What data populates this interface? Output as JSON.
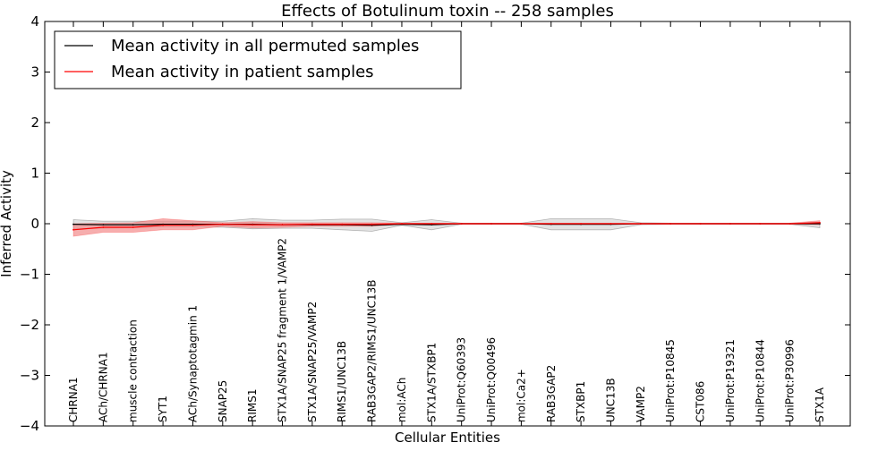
{
  "chart_data": {
    "type": "line",
    "title": "Effects of Botulinum toxin -- 258 samples",
    "xlabel": "Cellular Entities",
    "ylabel": "Inferred Activity",
    "ylim": [
      -4,
      4
    ],
    "yticks": [
      -4,
      -3,
      -2,
      -1,
      0,
      1,
      2,
      3,
      4
    ],
    "ytick_labels": [
      "−4",
      "−3",
      "−2",
      "−1",
      "0",
      "1",
      "2",
      "3",
      "4"
    ],
    "legend_position": "top-left",
    "categories": [
      "CHRNA1",
      "ACh/CHRNA1",
      "muscle contraction",
      "SYT1",
      "ACh/Synaptotagmin 1",
      "SNAP25",
      "RIMS1",
      "STX1A/SNAP25 fragment 1/VAMP2",
      "STX1A/SNAP25/VAMP2",
      "RIMS1/UNC13B",
      "RAB3GAP2/RIMS1/UNC13B",
      "mol:ACh",
      "STX1A/STXBP1",
      "UniProt:Q60393",
      "UniProt:Q00496",
      "mol:Ca2+",
      "RAB3GAP2",
      "STXBP1",
      "UNC13B",
      "VAMP2",
      "UniProt:P10845",
      "CST086",
      "UniProt:P19321",
      "UniProt:P10844",
      "UniProt:P30996",
      "STX1A"
    ],
    "series": [
      {
        "name": "Mean activity in all permuted samples",
        "color": "#000000",
        "band_color": "#bfbfbf",
        "values": [
          -0.01,
          -0.02,
          -0.02,
          -0.01,
          -0.01,
          -0.01,
          -0.01,
          -0.02,
          -0.02,
          -0.02,
          -0.03,
          -0.01,
          -0.02,
          0.0,
          0.0,
          0.0,
          -0.01,
          -0.01,
          -0.01,
          0.0,
          0.0,
          0.0,
          0.0,
          0.0,
          0.0,
          0.0
        ],
        "lower": [
          -0.1,
          -0.09,
          -0.08,
          -0.06,
          -0.06,
          -0.07,
          -0.1,
          -0.09,
          -0.09,
          -0.12,
          -0.15,
          -0.03,
          -0.12,
          -0.01,
          -0.01,
          -0.01,
          -0.12,
          -0.12,
          -0.12,
          -0.02,
          -0.01,
          -0.01,
          -0.01,
          -0.01,
          -0.01,
          -0.08
        ],
        "upper": [
          0.08,
          0.05,
          0.05,
          0.05,
          0.05,
          0.05,
          0.1,
          0.07,
          0.07,
          0.09,
          0.09,
          0.02,
          0.08,
          0.01,
          0.01,
          0.01,
          0.1,
          0.1,
          0.1,
          0.02,
          0.01,
          0.01,
          0.01,
          0.01,
          0.01,
          0.03
        ]
      },
      {
        "name": "Mean activity in patient samples",
        "color": "#ff0000",
        "band_color": "#f28c8c",
        "values": [
          -0.12,
          -0.07,
          -0.07,
          -0.03,
          -0.03,
          -0.01,
          -0.02,
          -0.02,
          -0.01,
          -0.01,
          -0.01,
          0.0,
          0.0,
          0.0,
          0.0,
          0.0,
          0.0,
          0.0,
          0.0,
          0.0,
          0.0,
          0.0,
          0.0,
          0.0,
          0.0,
          0.02
        ],
        "lower": [
          -0.25,
          -0.17,
          -0.17,
          -0.12,
          -0.12,
          -0.05,
          -0.08,
          -0.07,
          -0.05,
          -0.05,
          -0.05,
          -0.01,
          -0.01,
          -0.01,
          -0.01,
          -0.01,
          -0.01,
          -0.01,
          -0.01,
          -0.01,
          -0.01,
          -0.01,
          -0.01,
          -0.01,
          -0.01,
          -0.02
        ],
        "upper": [
          0.0,
          0.01,
          0.02,
          0.1,
          0.06,
          0.02,
          0.04,
          0.02,
          0.02,
          0.02,
          0.02,
          0.01,
          0.01,
          0.01,
          0.01,
          0.01,
          0.01,
          0.01,
          0.01,
          0.01,
          0.01,
          0.01,
          0.01,
          0.01,
          0.01,
          0.06
        ]
      }
    ]
  }
}
